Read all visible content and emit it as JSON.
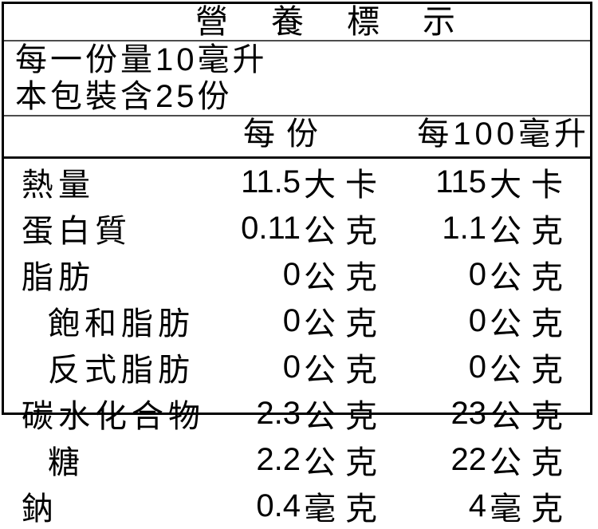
{
  "nutrition_label": {
    "title": "營養標示",
    "serving_info": {
      "serving_size": "每一份量10毫升",
      "servings_per_package": "本包裝含25份"
    },
    "column_headers": {
      "per_serving": "每份",
      "per_100ml": "每100毫升"
    },
    "rows": [
      {
        "name": "熱量",
        "indent": false,
        "per_serving_value": "11.5",
        "per_serving_unit": "大卡",
        "per_100ml_value": "115",
        "per_100ml_unit": "大卡"
      },
      {
        "name": "蛋白質",
        "indent": false,
        "per_serving_value": "0.11",
        "per_serving_unit": "公克",
        "per_100ml_value": "1.1",
        "per_100ml_unit": "公克"
      },
      {
        "name": "脂肪",
        "indent": false,
        "per_serving_value": "0",
        "per_serving_unit": "公克",
        "per_100ml_value": "0",
        "per_100ml_unit": "公克"
      },
      {
        "name": "飽和脂肪",
        "indent": true,
        "per_serving_value": "0",
        "per_serving_unit": "公克",
        "per_100ml_value": "0",
        "per_100ml_unit": "公克"
      },
      {
        "name": "反式脂肪",
        "indent": true,
        "per_serving_value": "0",
        "per_serving_unit": "公克",
        "per_100ml_value": "0",
        "per_100ml_unit": "公克"
      },
      {
        "name": "碳水化合物",
        "indent": false,
        "per_serving_value": "2.3",
        "per_serving_unit": "公克",
        "per_100ml_value": "23",
        "per_100ml_unit": "公克"
      },
      {
        "name": "糖",
        "indent": true,
        "per_serving_value": "2.2",
        "per_serving_unit": "公克",
        "per_100ml_value": "22",
        "per_100ml_unit": "公克"
      },
      {
        "name": "鈉",
        "indent": false,
        "per_serving_value": "0.4",
        "per_serving_unit": "毫克",
        "per_100ml_value": "4",
        "per_100ml_unit": "毫克"
      }
    ],
    "colors": {
      "text": "#000000",
      "background": "#ffffff",
      "outer_border": "#000000",
      "thin_rule": "#4d4d4d",
      "thick_rule": "#111111"
    }
  }
}
